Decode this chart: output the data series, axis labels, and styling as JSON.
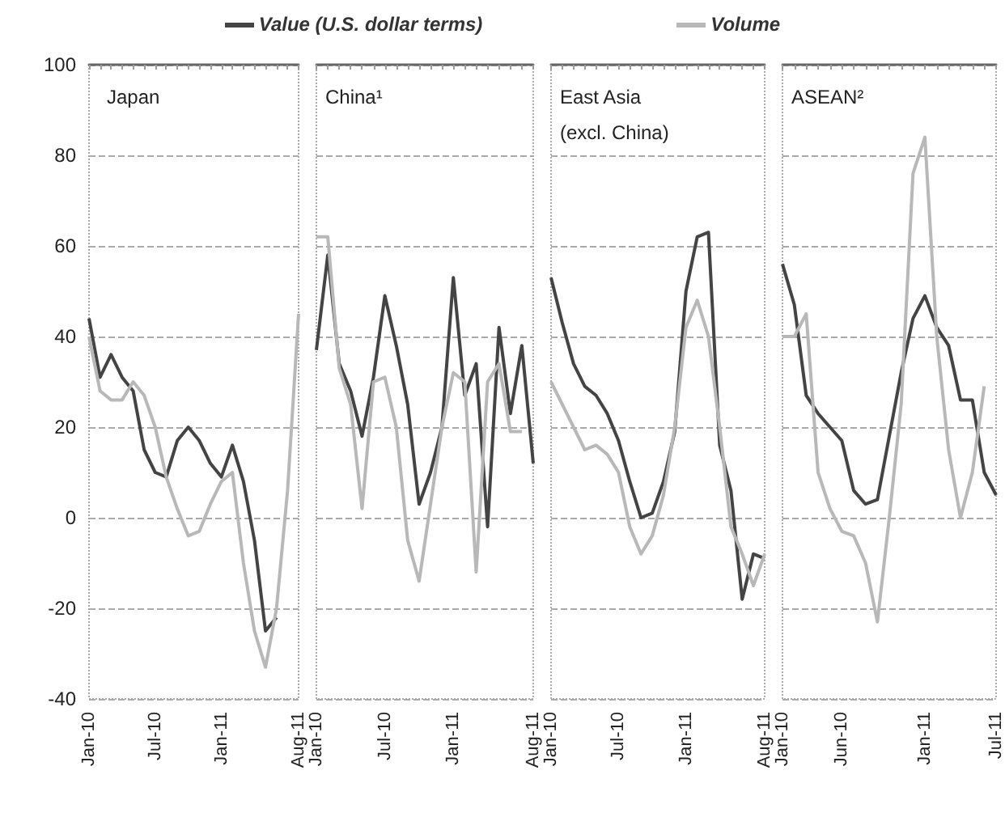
{
  "chart_data": [
    {
      "type": "line",
      "title": "Japan",
      "legend": "top",
      "grid": "y",
      "ylim": [
        -40,
        100
      ],
      "yticks": [
        -40,
        -20,
        0,
        20,
        40,
        60,
        80,
        100
      ],
      "categories": [
        "Jan-10",
        null,
        null,
        null,
        null,
        null,
        "Jul-10",
        null,
        null,
        null,
        null,
        null,
        "Jan-11",
        null,
        null,
        null,
        null,
        null,
        null,
        "Aug-11"
      ],
      "series": [
        {
          "name": "Value (U.S. dollar terms)",
          "color": "#444444",
          "values": [
            44,
            31,
            36,
            31,
            28,
            15,
            10,
            9,
            17,
            20,
            17,
            12,
            9,
            16,
            8,
            -5,
            -25,
            -22,
            null,
            null
          ]
        },
        {
          "name": "Volume",
          "color": "#b8b8b8",
          "values": [
            40,
            28,
            26,
            26,
            30,
            27,
            20,
            9,
            2,
            -4,
            -3,
            3,
            8,
            10,
            -10,
            -25,
            -33,
            -20,
            6,
            45
          ]
        }
      ]
    },
    {
      "type": "line",
      "title": "China¹",
      "grid": "y",
      "tick_labels": "x",
      "ylim": [
        -40,
        100
      ],
      "yticks": [
        -40,
        -20,
        0,
        20,
        40,
        60,
        80,
        100
      ],
      "categories": [
        "Jan-10",
        null,
        null,
        null,
        null,
        null,
        "Jul-10",
        null,
        null,
        null,
        null,
        null,
        "Jan-11",
        null,
        null,
        null,
        null,
        null,
        null,
        "Aug-11"
      ],
      "series": [
        {
          "color": "#444444",
          "values": [
            37,
            58,
            34,
            28,
            18,
            31,
            49,
            38,
            25,
            3,
            10,
            20,
            53,
            27,
            34,
            -2,
            42,
            23,
            38,
            12
          ]
        },
        {
          "color": "#b8b8b8",
          "values": [
            62,
            62,
            33,
            25,
            2,
            30,
            31,
            20,
            -5,
            -14,
            3,
            20,
            32,
            30,
            -12,
            30,
            34,
            19,
            19,
            null
          ]
        }
      ]
    },
    {
      "type": "line",
      "title": "East Asia\n(excl. China)",
      "grid": "y",
      "tick_labels": "x",
      "ylim": [
        -40,
        100
      ],
      "yticks": [
        -40,
        -20,
        0,
        20,
        40,
        60,
        80,
        100
      ],
      "categories": [
        "Jan-10",
        null,
        null,
        null,
        null,
        null,
        "Jul-10",
        null,
        null,
        null,
        null,
        null,
        "Jan-11",
        null,
        null,
        null,
        null,
        null,
        null,
        "Aug-11"
      ],
      "series": [
        {
          "color": "#444444",
          "values": [
            53,
            43,
            34,
            29,
            27,
            23,
            17,
            8,
            0,
            1,
            8,
            19,
            50,
            62,
            63,
            16,
            6,
            -18,
            -8,
            -9
          ]
        },
        {
          "color": "#b8b8b8",
          "values": [
            30,
            25,
            20,
            15,
            16,
            14,
            10,
            -2,
            -8,
            -4,
            5,
            20,
            42,
            48,
            40,
            20,
            -2,
            -8,
            -15,
            -8
          ]
        }
      ]
    },
    {
      "type": "line",
      "title": "ASEAN²",
      "grid": "y",
      "tick_labels": "x",
      "ylim": [
        -40,
        100
      ],
      "yticks": [
        -40,
        -20,
        0,
        20,
        40,
        60,
        80,
        100
      ],
      "categories": [
        "Jan-10",
        null,
        null,
        null,
        null,
        "Jun-10",
        null,
        null,
        null,
        null,
        null,
        null,
        "Jan-11",
        null,
        null,
        null,
        null,
        null,
        "Jul-11"
      ],
      "series": [
        {
          "color": "#444444",
          "values": [
            56,
            47,
            27,
            23,
            20,
            17,
            6,
            3,
            4,
            18,
            32,
            44,
            49,
            42,
            38,
            26,
            26,
            10,
            5
          ]
        },
        {
          "color": "#b8b8b8",
          "values": [
            40,
            40,
            45,
            10,
            2,
            -3,
            -4,
            -10,
            -23,
            0,
            25,
            76,
            84,
            40,
            15,
            0,
            10,
            29,
            null
          ]
        }
      ]
    }
  ]
}
